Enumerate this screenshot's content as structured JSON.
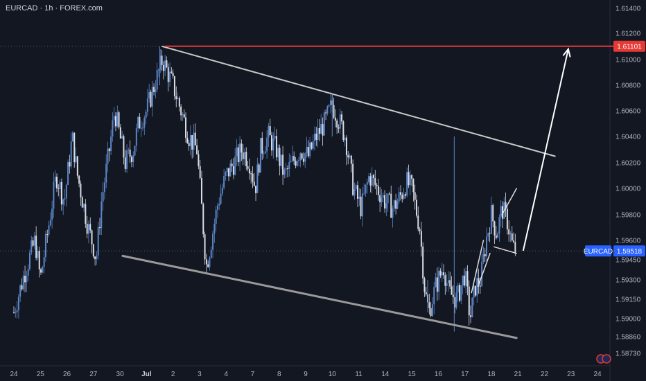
{
  "header": {
    "title": "EURCAD · 1h · FOREX.com"
  },
  "chart_data": {
    "type": "candlestick",
    "symbol": "EURCAD",
    "interval": "1h",
    "source": "FOREX.com",
    "ylim": [
      1.5866,
      1.6152
    ],
    "y_ticks": [
      "1.61400",
      "1.61200",
      "1.61000",
      "1.60800",
      "1.60600",
      "1.60400",
      "1.60200",
      "1.60000",
      "1.59800",
      "1.59600",
      "1.59450",
      "1.59300",
      "1.59150",
      "1.59000",
      "1.58860",
      "1.58730"
    ],
    "x_ticks": [
      {
        "label": "24",
        "x": 0.0
      },
      {
        "label": "25",
        "x": 1.0
      },
      {
        "label": "26",
        "x": 2.0
      },
      {
        "label": "27",
        "x": 3.0
      },
      {
        "label": "30",
        "x": 4.0
      },
      {
        "label": "Jul",
        "x": 5.0,
        "bold": true
      },
      {
        "label": "2",
        "x": 6.0
      },
      {
        "label": "3",
        "x": 7.0
      },
      {
        "label": "4",
        "x": 8.0
      },
      {
        "label": "7",
        "x": 9.0
      },
      {
        "label": "8",
        "x": 10.0
      },
      {
        "label": "9",
        "x": 11.0
      },
      {
        "label": "10",
        "x": 12.0
      },
      {
        "label": "11",
        "x": 13.0
      },
      {
        "label": "14",
        "x": 14.0
      },
      {
        "label": "15",
        "x": 15.0
      },
      {
        "label": "16",
        "x": 16.0
      },
      {
        "label": "17",
        "x": 17.0
      },
      {
        "label": "18",
        "x": 18.0
      },
      {
        "label": "21",
        "x": 19.0
      },
      {
        "label": "22",
        "x": 20.0
      },
      {
        "label": "23",
        "x": 21.0
      },
      {
        "label": "24",
        "x": 22.0
      }
    ],
    "price_path": [
      [
        0.0,
        1.5905
      ],
      [
        0.4,
        1.5935
      ],
      [
        0.8,
        1.596
      ],
      [
        1.0,
        1.593
      ],
      [
        1.3,
        1.597
      ],
      [
        1.6,
        1.601
      ],
      [
        1.9,
        1.599
      ],
      [
        2.2,
        1.604
      ],
      [
        2.4,
        1.601
      ],
      [
        2.6,
        1.599
      ],
      [
        2.8,
        1.597
      ],
      [
        3.0,
        1.5955
      ],
      [
        3.1,
        1.5945
      ],
      [
        3.3,
        1.599
      ],
      [
        3.6,
        1.603
      ],
      [
        3.8,
        1.606
      ],
      [
        4.0,
        1.604
      ],
      [
        4.2,
        1.602
      ],
      [
        4.5,
        1.603
      ],
      [
        4.7,
        1.605
      ],
      [
        5.0,
        1.606
      ],
      [
        5.3,
        1.608
      ],
      [
        5.6,
        1.61
      ],
      [
        6.0,
        1.608
      ],
      [
        6.3,
        1.606
      ],
      [
        6.6,
        1.604
      ],
      [
        6.9,
        1.603
      ],
      [
        7.1,
        1.598
      ],
      [
        7.25,
        1.594
      ],
      [
        7.4,
        1.5955
      ],
      [
        7.7,
        1.599
      ],
      [
        8.0,
        1.601
      ],
      [
        8.3,
        1.602
      ],
      [
        8.6,
        1.603
      ],
      [
        8.9,
        1.602
      ],
      [
        9.1,
        1.6
      ],
      [
        9.3,
        1.603
      ],
      [
        9.6,
        1.604
      ],
      [
        9.9,
        1.603
      ],
      [
        10.2,
        1.601
      ],
      [
        10.5,
        1.602
      ],
      [
        10.8,
        1.603
      ],
      [
        11.1,
        1.6025
      ],
      [
        11.4,
        1.604
      ],
      [
        11.7,
        1.605
      ],
      [
        12.0,
        1.6065
      ],
      [
        12.2,
        1.6055
      ],
      [
        12.5,
        1.604
      ],
      [
        12.8,
        1.6
      ],
      [
        13.1,
        1.5985
      ],
      [
        13.4,
        1.601
      ],
      [
        13.7,
        1.6
      ],
      [
        14.0,
        1.599
      ],
      [
        14.3,
        1.5985
      ],
      [
        14.6,
        1.5995
      ],
      [
        14.8,
        1.6005
      ],
      [
        15.0,
        1.6
      ],
      [
        15.3,
        1.597
      ],
      [
        15.5,
        1.592
      ],
      [
        15.65,
        1.5905
      ],
      [
        15.9,
        1.5925
      ],
      [
        16.2,
        1.594
      ],
      [
        16.4,
        1.592
      ],
      [
        16.7,
        1.5915
      ],
      [
        17.0,
        1.5935
      ],
      [
        17.2,
        1.59
      ],
      [
        17.4,
        1.5925
      ],
      [
        17.6,
        1.593
      ],
      [
        17.8,
        1.596
      ],
      [
        18.0,
        1.598
      ],
      [
        18.2,
        1.5965
      ],
      [
        18.4,
        1.5985
      ],
      [
        18.6,
        1.5975
      ],
      [
        18.8,
        1.5955
      ],
      [
        18.9,
        1.5952
      ]
    ],
    "spikes": [
      {
        "x": 16.6,
        "high": 1.604,
        "low": 1.589
      },
      {
        "x": 15.6,
        "high": 1.593,
        "low": 1.5905
      },
      {
        "x": 5.5,
        "high": 1.611,
        "low": 1.608
      },
      {
        "x": 12.0,
        "high": 1.6072,
        "low": 1.604
      }
    ],
    "lines": [
      {
        "name": "upper-channel",
        "from": [
          5.6,
          1.611
        ],
        "to": [
          20.4,
          1.6025
        ],
        "color": "#c9c9c9",
        "width": 2
      },
      {
        "name": "lower-channel",
        "from": [
          4.1,
          1.5948
        ],
        "to": [
          18.95,
          1.5885
        ],
        "color": "#9a9a9a",
        "width": 3
      },
      {
        "name": "resistance",
        "from": [
          5.7,
          1.61101
        ],
        "to": [
          23.0,
          1.61101
        ],
        "color": "#e53935",
        "width": 2
      },
      {
        "name": "flag-upper",
        "from": [
          18.4,
          1.598
        ],
        "to": [
          18.95,
          1.6
        ],
        "color": "#e0e0e0",
        "width": 1.5
      },
      {
        "name": "flag-lower",
        "from": [
          18.1,
          1.5955
        ],
        "to": [
          18.95,
          1.595
        ],
        "color": "#e0e0e0",
        "width": 1.5
      },
      {
        "name": "wedge-left",
        "from": [
          17.25,
          1.592
        ],
        "to": [
          17.7,
          1.596
        ],
        "color": "#e0e0e0",
        "width": 1.5
      },
      {
        "name": "wedge-right",
        "from": [
          17.5,
          1.5925
        ],
        "to": [
          17.95,
          1.595
        ],
        "color": "#e0e0e0",
        "width": 1.5
      }
    ],
    "arrow": {
      "from": [
        19.2,
        1.5952
      ],
      "to": [
        20.9,
        1.6108
      ],
      "color": "#ffffff"
    },
    "dotted_levels": [
      1.61101,
      1.59518
    ],
    "price_labels": [
      {
        "text": "1.61101",
        "value": 1.61101,
        "bg": "#e53935",
        "color": "#ffffff"
      },
      {
        "text": "1.59518",
        "value": 1.59518,
        "bg": "#2962ff",
        "color": "#ffffff"
      }
    ],
    "symbol_tag": "EURCAD",
    "colors": {
      "background": "#131722",
      "up": "#5b86c8",
      "down": "#d8dce6",
      "grid": "#363a45",
      "axis_text": "#b2b5be"
    }
  }
}
